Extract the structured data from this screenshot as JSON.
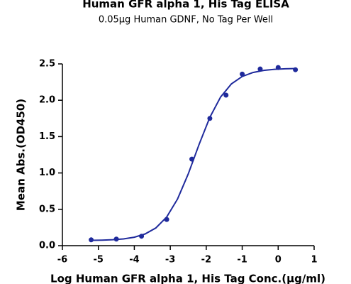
{
  "chart_data": {
    "type": "scatter",
    "title": "Human GFR alpha 1, His Tag ELISA",
    "subtitle": "0.05µg Human GDNF, No Tag Per Well",
    "x_label": "Log Human GFR alpha 1, His Tag Conc.(µg/ml)",
    "y_label": "Mean Abs.(OD450)",
    "xlim": [
      -6,
      1
    ],
    "xticks": [
      -6,
      -5,
      -4,
      -3,
      -2,
      -1,
      0,
      1
    ],
    "ylim": [
      0,
      2.5
    ],
    "yticks": [
      {
        "value": 0,
        "label": "0.0"
      },
      0.5,
      {
        "value": 1,
        "label": "1.0"
      },
      1.5,
      {
        "value": 2,
        "label": "2.0"
      },
      2.5
    ],
    "series": [
      {
        "type": "scatter",
        "color": "#1f2a9c",
        "x": [
          -5.2,
          -4.5,
          -3.8,
          -3.1,
          -2.4,
          -1.9,
          -1.45,
          -1.0,
          -0.5,
          0.0,
          0.48
        ],
        "values": [
          0.08,
          0.09,
          0.13,
          0.36,
          1.19,
          1.75,
          2.07,
          2.36,
          2.43,
          2.45,
          2.42
        ]
      },
      {
        "type": "line",
        "color": "#1f2a9c",
        "x": [
          -5.2,
          -4.9,
          -4.6,
          -4.3,
          -4.0,
          -3.7,
          -3.4,
          -3.1,
          -2.8,
          -2.5,
          -2.2,
          -1.9,
          -1.6,
          -1.3,
          -1.0,
          -0.7,
          -0.4,
          -0.1,
          0.2,
          0.5
        ],
        "values": [
          0.073,
          0.076,
          0.082,
          0.093,
          0.116,
          0.161,
          0.244,
          0.394,
          0.64,
          0.987,
          1.391,
          1.765,
          2.045,
          2.225,
          2.327,
          2.382,
          2.411,
          2.425,
          2.433,
          2.436
        ]
      }
    ]
  }
}
